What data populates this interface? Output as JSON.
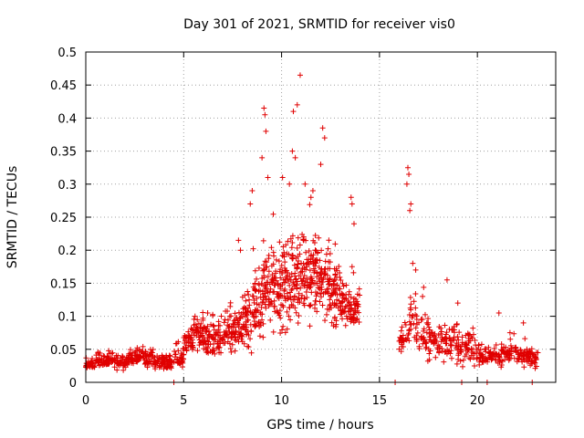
{
  "chart_data": {
    "type": "scatter",
    "title": "Day 301 of 2021, SRMTID for receiver vis0",
    "xlabel": "GPS time / hours",
    "ylabel": "SRMTID / TECUs",
    "xlim": [
      0,
      24
    ],
    "ylim": [
      0,
      0.5
    ],
    "x_ticks": [
      0,
      5,
      10,
      15,
      20
    ],
    "x_tick_labels": [
      "0",
      "5",
      "10",
      "15",
      "20"
    ],
    "y_ticks": [
      0,
      0.05,
      0.1,
      0.15,
      0.2,
      0.25,
      0.3,
      0.35,
      0.4,
      0.45,
      0.5
    ],
    "y_tick_labels": [
      "0",
      "0.05",
      "0.1",
      "0.15",
      "0.2",
      "0.25",
      "0.3",
      "0.35",
      "0.4",
      "0.45",
      "0.5"
    ],
    "grid": true,
    "marker": "+",
    "series": [
      {
        "name": "vis0",
        "color": "#e00000",
        "envelope": {
          "hours": [
            0.0,
            0.5,
            1.0,
            1.5,
            2.0,
            2.5,
            3.0,
            3.5,
            4.0,
            4.5,
            5.0,
            5.5,
            6.0,
            6.5,
            7.0,
            7.5,
            8.0,
            8.5,
            9.0,
            9.5,
            10.0,
            10.5,
            11.0,
            11.5,
            12.0,
            12.5,
            13.0,
            13.5,
            14.0,
            16.0,
            16.5,
            17.0,
            17.5,
            18.0,
            18.5,
            19.0,
            19.5,
            20.0,
            20.5,
            21.0,
            21.5,
            22.0,
            22.5,
            22.8
          ],
          "median": [
            0.028,
            0.032,
            0.033,
            0.032,
            0.035,
            0.04,
            0.035,
            0.03,
            0.03,
            0.038,
            0.06,
            0.075,
            0.065,
            0.065,
            0.075,
            0.08,
            0.09,
            0.12,
            0.14,
            0.14,
            0.15,
            0.16,
            0.16,
            0.16,
            0.15,
            0.14,
            0.12,
            0.11,
            null,
            0.07,
            0.09,
            0.07,
            0.06,
            0.06,
            0.06,
            0.05,
            0.05,
            0.04,
            0.04,
            0.04,
            0.045,
            0.04,
            0.04,
            0.035
          ],
          "spread": [
            0.012,
            0.015,
            0.015,
            0.015,
            0.015,
            0.02,
            0.02,
            0.015,
            0.015,
            0.02,
            0.025,
            0.03,
            0.035,
            0.035,
            0.04,
            0.045,
            0.06,
            0.08,
            0.09,
            0.09,
            0.09,
            0.09,
            0.09,
            0.08,
            0.08,
            0.07,
            0.05,
            0.04,
            null,
            0.03,
            0.06,
            0.05,
            0.035,
            0.04,
            0.04,
            0.03,
            0.035,
            0.025,
            0.02,
            0.025,
            0.025,
            0.02,
            0.02,
            0.02
          ],
          "count": [
            36,
            36,
            36,
            36,
            36,
            36,
            36,
            36,
            36,
            36,
            40,
            40,
            40,
            40,
            40,
            40,
            46,
            50,
            54,
            54,
            56,
            56,
            56,
            56,
            54,
            50,
            44,
            40,
            0,
            26,
            30,
            30,
            30,
            30,
            30,
            30,
            30,
            30,
            30,
            30,
            30,
            30,
            26,
            16
          ]
        },
        "peak_points": [
          {
            "x": 10.95,
            "y": 0.465
          },
          {
            "x": 10.8,
            "y": 0.42
          },
          {
            "x": 9.1,
            "y": 0.415
          },
          {
            "x": 9.15,
            "y": 0.405
          },
          {
            "x": 10.6,
            "y": 0.41
          },
          {
            "x": 9.2,
            "y": 0.38
          },
          {
            "x": 12.1,
            "y": 0.385
          },
          {
            "x": 12.2,
            "y": 0.37
          },
          {
            "x": 10.55,
            "y": 0.35
          },
          {
            "x": 10.7,
            "y": 0.34
          },
          {
            "x": 9.3,
            "y": 0.31
          },
          {
            "x": 10.4,
            "y": 0.3
          },
          {
            "x": 12.0,
            "y": 0.33
          },
          {
            "x": 16.45,
            "y": 0.325
          },
          {
            "x": 16.5,
            "y": 0.315
          },
          {
            "x": 16.4,
            "y": 0.3
          },
          {
            "x": 13.55,
            "y": 0.28
          },
          {
            "x": 13.6,
            "y": 0.27
          },
          {
            "x": 8.5,
            "y": 0.29
          },
          {
            "x": 9.0,
            "y": 0.34
          },
          {
            "x": 11.5,
            "y": 0.28
          },
          {
            "x": 16.6,
            "y": 0.27
          },
          {
            "x": 16.55,
            "y": 0.26
          },
          {
            "x": 13.7,
            "y": 0.24
          },
          {
            "x": 8.4,
            "y": 0.27
          },
          {
            "x": 11.2,
            "y": 0.3
          },
          {
            "x": 11.6,
            "y": 0.29
          },
          {
            "x": 10.05,
            "y": 0.31
          },
          {
            "x": 18.45,
            "y": 0.155
          },
          {
            "x": 16.7,
            "y": 0.18
          },
          {
            "x": 16.85,
            "y": 0.17
          },
          {
            "x": 7.8,
            "y": 0.215
          },
          {
            "x": 7.9,
            "y": 0.2
          },
          {
            "x": 13.6,
            "y": 0.175
          },
          {
            "x": 17.2,
            "y": 0.13
          },
          {
            "x": 19.0,
            "y": 0.12
          },
          {
            "x": 21.1,
            "y": 0.105
          },
          {
            "x": 22.35,
            "y": 0.09
          }
        ],
        "baseline_points_x": [
          4.5,
          15.8,
          19.2,
          20.5,
          22.8
        ]
      }
    ]
  }
}
